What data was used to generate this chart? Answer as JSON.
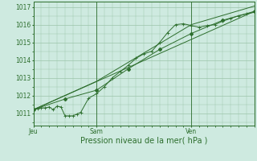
{
  "background_color": "#ceeae0",
  "grid_color": "#9cc4aa",
  "line_color": "#2d6e2d",
  "marker_color": "#2d6e2d",
  "title": "Pression niveau de la mer( hPa )",
  "xlabel_ticks": [
    "Jeu",
    "Sam",
    "Ven"
  ],
  "xlabel_tick_positions": [
    0,
    48,
    120
  ],
  "ylim": [
    1010.3,
    1017.3
  ],
  "yticks": [
    1011,
    1012,
    1013,
    1014,
    1015,
    1016,
    1017
  ],
  "xlim": [
    0,
    168
  ],
  "series1_x": [
    0,
    3,
    6,
    9,
    12,
    15,
    18,
    21,
    24,
    27,
    30,
    33,
    36,
    42,
    48,
    54,
    60,
    66,
    72,
    78,
    84,
    90,
    96,
    102,
    108,
    114,
    120,
    126,
    132,
    138,
    144,
    150,
    156,
    162,
    168
  ],
  "series1_y": [
    1011.2,
    1011.25,
    1011.3,
    1011.3,
    1011.35,
    1011.2,
    1011.4,
    1011.35,
    1010.85,
    1010.85,
    1010.85,
    1010.95,
    1011.05,
    1011.85,
    1012.1,
    1012.5,
    1013.0,
    1013.35,
    1013.7,
    1014.1,
    1014.35,
    1014.5,
    1015.0,
    1015.55,
    1016.0,
    1016.05,
    1015.95,
    1015.85,
    1015.95,
    1016.0,
    1016.2,
    1016.35,
    1016.5,
    1016.6,
    1016.7
  ],
  "series2_x": [
    0,
    24,
    48,
    72,
    96,
    120,
    144,
    168
  ],
  "series2_y": [
    1011.2,
    1011.8,
    1012.3,
    1013.5,
    1014.6,
    1015.5,
    1016.25,
    1016.75
  ],
  "series3_x": [
    0,
    168
  ],
  "series3_y": [
    1011.2,
    1016.75
  ],
  "series4_x": [
    0,
    48,
    120,
    168
  ],
  "series4_y": [
    1011.2,
    1012.8,
    1016.0,
    1017.05
  ],
  "vline_positions": [
    0,
    48,
    120
  ],
  "tick_fontsize": 5.5,
  "label_fontsize": 7.0
}
